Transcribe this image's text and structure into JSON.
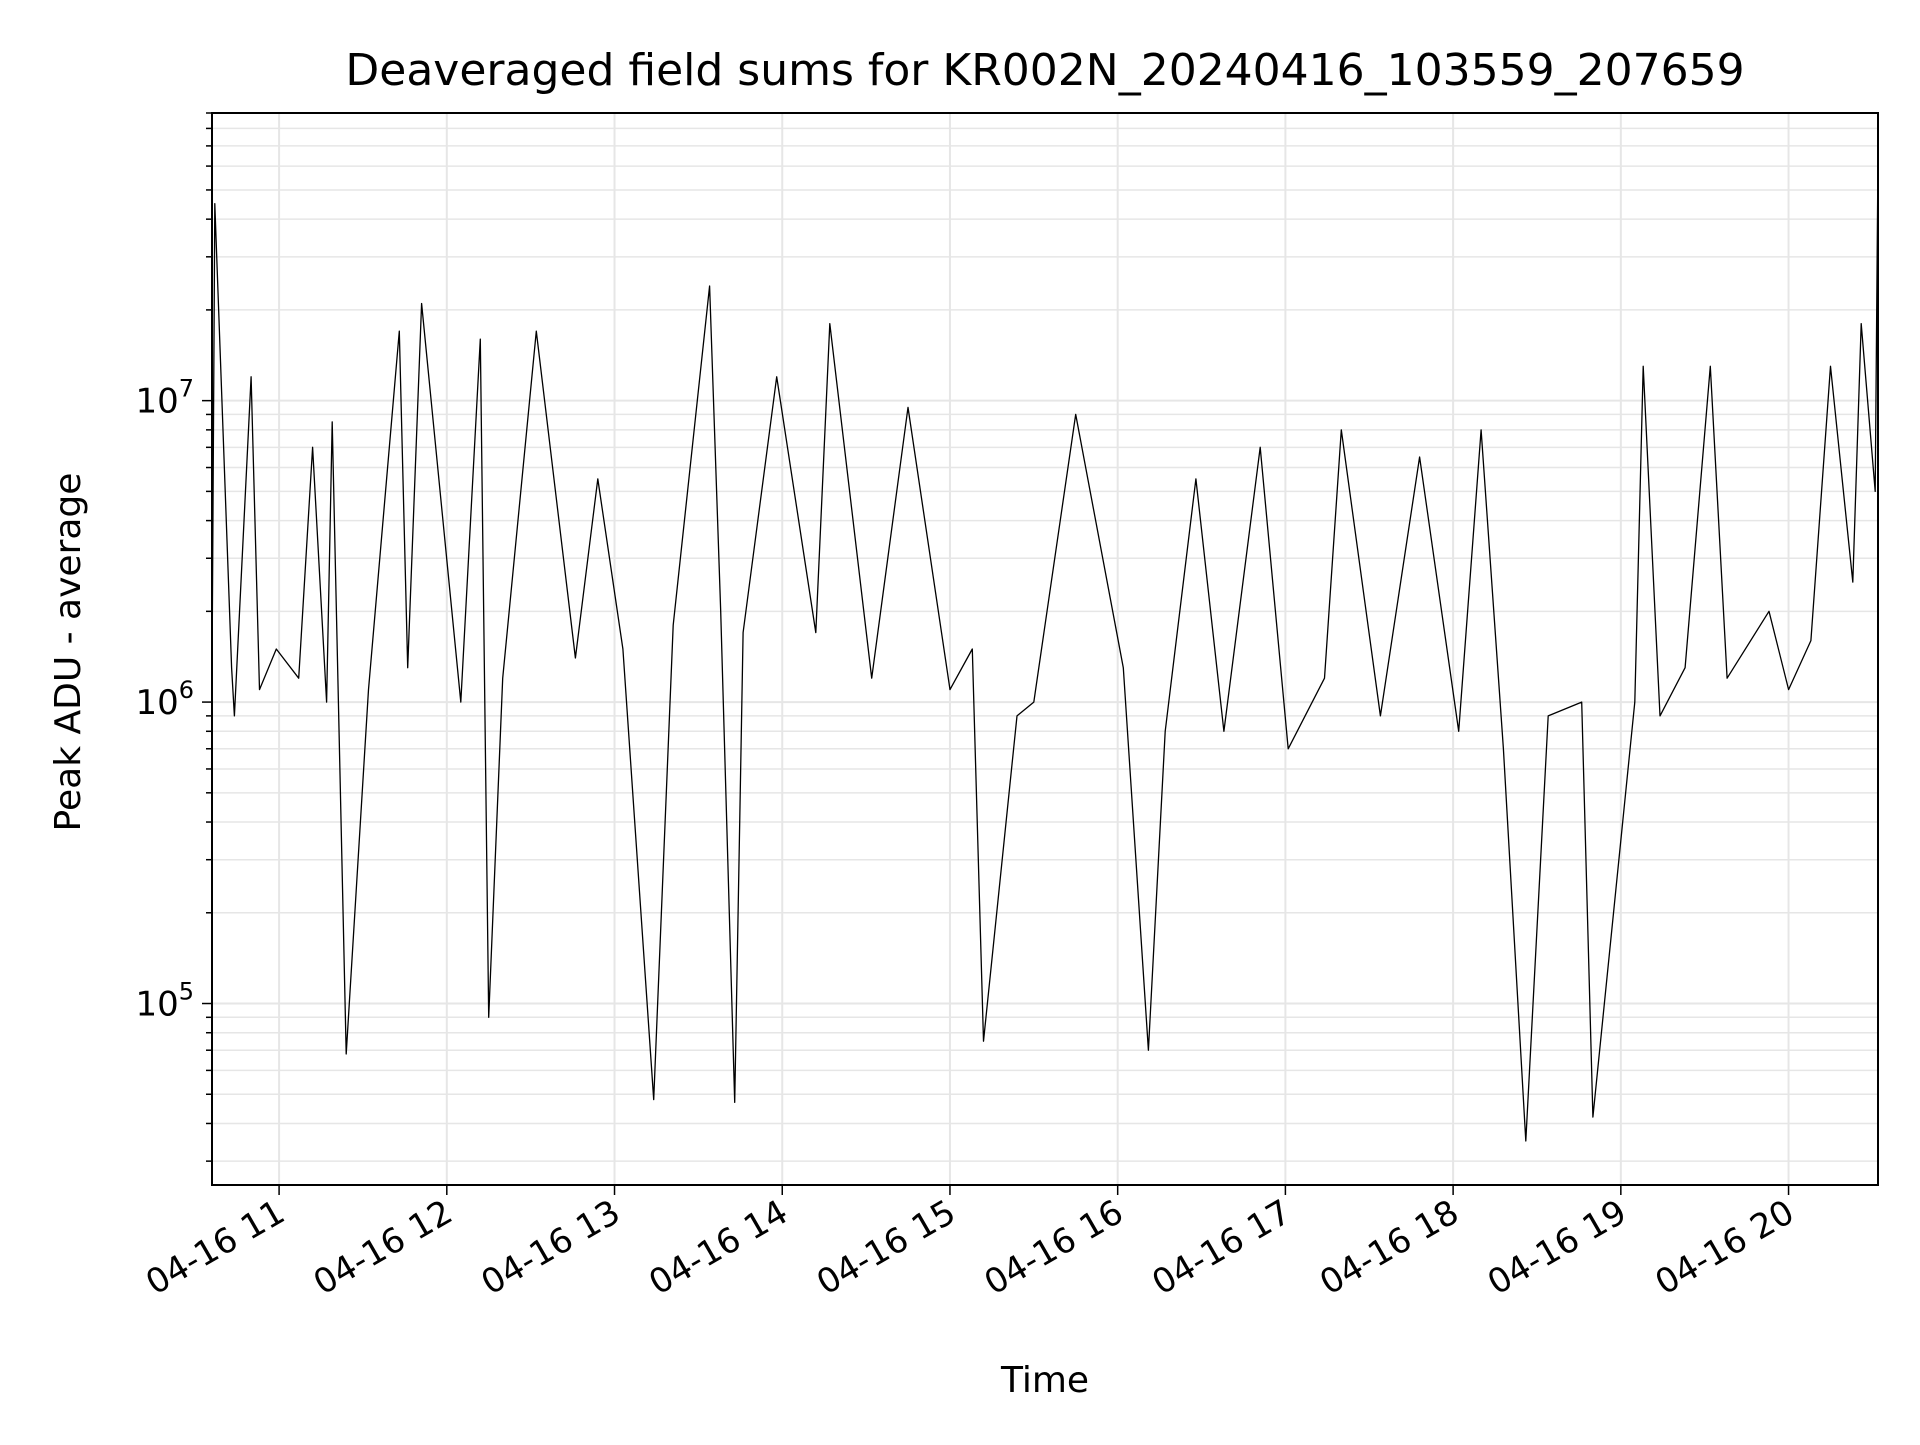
{
  "chart_data": {
    "type": "line",
    "title": "Deaveraged field sums for KR002N_20240416_103559_207659",
    "xlabel": "Time",
    "ylabel": "Peak ADU - average",
    "yscale": "log",
    "xlim": [
      "2024-04-16T10:36:00",
      "2024-04-16T20:32:00"
    ],
    "ylim": [
      25000,
      90000000
    ],
    "grid": true,
    "line_color": "#000000",
    "grid_color": "#e6e6e6",
    "x_ticks": [
      {
        "label": "04-16 11",
        "value": "2024-04-16T11:00:00"
      },
      {
        "label": "04-16 12",
        "value": "2024-04-16T12:00:00"
      },
      {
        "label": "04-16 13",
        "value": "2024-04-16T13:00:00"
      },
      {
        "label": "04-16 14",
        "value": "2024-04-16T14:00:00"
      },
      {
        "label": "04-16 15",
        "value": "2024-04-16T15:00:00"
      },
      {
        "label": "04-16 16",
        "value": "2024-04-16T16:00:00"
      },
      {
        "label": "04-16 17",
        "value": "2024-04-16T17:00:00"
      },
      {
        "label": "04-16 18",
        "value": "2024-04-16T18:00:00"
      },
      {
        "label": "04-16 19",
        "value": "2024-04-16T19:00:00"
      },
      {
        "label": "04-16 20",
        "value": "2024-04-16T20:00:00"
      }
    ],
    "y_ticks": [
      {
        "base": "10",
        "exp": "5",
        "value": 100000
      },
      {
        "base": "10",
        "exp": "6",
        "value": 1000000
      },
      {
        "base": "10",
        "exp": "7",
        "value": 10000000
      }
    ],
    "series": [
      {
        "x": [
          "2024-04-16T10:36:00",
          "2024-04-16T10:37:00",
          "2024-04-16T10:43:00",
          "2024-04-16T10:44:00",
          "2024-04-16T10:50:00",
          "2024-04-16T10:53:00",
          "2024-04-16T10:59:00",
          "2024-04-16T11:07:00",
          "2024-04-16T11:12:00",
          "2024-04-16T11:17:00",
          "2024-04-16T11:19:00",
          "2024-04-16T11:24:00",
          "2024-04-16T11:32:00",
          "2024-04-16T11:43:00",
          "2024-04-16T11:46:00",
          "2024-04-16T11:51:00",
          "2024-04-16T12:05:00",
          "2024-04-16T12:12:00",
          "2024-04-16T12:15:00",
          "2024-04-16T12:20:00",
          "2024-04-16T12:32:00",
          "2024-04-16T12:46:00",
          "2024-04-16T12:54:00",
          "2024-04-16T13:03:00",
          "2024-04-16T13:14:00",
          "2024-04-16T13:21:00",
          "2024-04-16T13:34:00",
          "2024-04-16T13:38:00",
          "2024-04-16T13:43:00",
          "2024-04-16T13:46:00",
          "2024-04-16T13:58:00",
          "2024-04-16T14:12:00",
          "2024-04-16T14:17:00",
          "2024-04-16T14:32:00",
          "2024-04-16T14:45:00",
          "2024-04-16T15:00:00",
          "2024-04-16T15:08:00",
          "2024-04-16T15:12:00",
          "2024-04-16T15:24:00",
          "2024-04-16T15:30:00",
          "2024-04-16T15:45:00",
          "2024-04-16T16:02:00",
          "2024-04-16T16:11:00",
          "2024-04-16T16:17:00",
          "2024-04-16T16:28:00",
          "2024-04-16T16:38:00",
          "2024-04-16T16:51:00",
          "2024-04-16T17:01:00",
          "2024-04-16T17:14:00",
          "2024-04-16T17:20:00",
          "2024-04-16T17:34:00",
          "2024-04-16T17:48:00",
          "2024-04-16T18:02:00",
          "2024-04-16T18:10:00",
          "2024-04-16T18:18:00",
          "2024-04-16T18:26:00",
          "2024-04-16T18:34:00",
          "2024-04-16T18:46:00",
          "2024-04-16T18:50:00",
          "2024-04-16T19:05:00",
          "2024-04-16T19:08:00",
          "2024-04-16T19:14:00",
          "2024-04-16T19:23:00",
          "2024-04-16T19:32:00",
          "2024-04-16T19:38:00",
          "2024-04-16T19:53:00",
          "2024-04-16T20:00:00",
          "2024-04-16T20:08:00",
          "2024-04-16T20:15:00",
          "2024-04-16T20:23:00",
          "2024-04-16T20:26:00",
          "2024-04-16T20:31:00",
          "2024-04-16T20:32:00"
        ],
        "y": [
          1200000,
          45000000,
          1300000,
          900000,
          12000000,
          1100000,
          1500000,
          1200000,
          7000000,
          1000000,
          8500000,
          68000,
          1100000,
          17000000,
          1300000,
          21000000,
          1000000,
          16000000,
          90000,
          1200000,
          17000000,
          1400000,
          5500000,
          1500000,
          48000,
          1800000,
          24000000,
          2000000,
          47000,
          1700000,
          12000000,
          1700000,
          18000000,
          1200000,
          9500000,
          1100000,
          1500000,
          75000,
          900000,
          1000000,
          9000000,
          1300000,
          70000,
          800000,
          5500000,
          800000,
          7000000,
          700000,
          1200000,
          8000000,
          900000,
          6500000,
          800000,
          8000000,
          700000,
          35000,
          900000,
          1000000,
          42000,
          1000000,
          13000000,
          900000,
          1300000,
          13000000,
          1200000,
          2000000,
          1100000,
          1600000,
          13000000,
          2500000,
          18000000,
          5000000,
          65000000
        ]
      }
    ]
  }
}
